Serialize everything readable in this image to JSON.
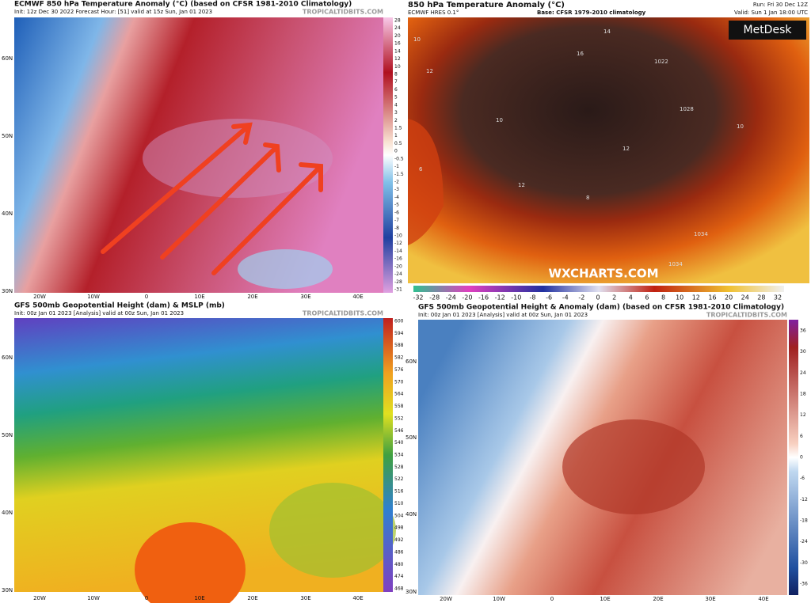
{
  "panels": [
    {
      "title": "ECMWF 850 hPa Temperature Anomaly (°C) (based on CFSR 1981-2010 Climatology)",
      "subtitle": "Init: 12z Dec 30 2022   Forecast Hour: [51]   valid at 15z Sun, Jan 01 2023",
      "credit": "TROPICALTIDBITS.COM",
      "colorbar": [
        28,
        24,
        20,
        16,
        14,
        12,
        10,
        8,
        7,
        6,
        5,
        4,
        3,
        2,
        1.5,
        1,
        0.5,
        0,
        -0.5,
        -1,
        -1.5,
        -2,
        -3,
        -4,
        -5,
        -6,
        -7,
        -8,
        -10,
        -12,
        -14,
        -16,
        -20,
        -24,
        -28,
        -31
      ],
      "lat_labels": [
        "60N",
        "50N",
        "40N",
        "30N"
      ],
      "lon_labels": [
        "20W",
        "10W",
        "0",
        "10E",
        "20E",
        "30E",
        "40E"
      ]
    },
    {
      "title": "850 hPa Temperature Anomaly (°C)",
      "subtitle": "ECMWF HRES 0.1°",
      "base": "Base: CFSR 1979-2010 climatology",
      "run": "Run: Fri 30 Dec 12Z",
      "valid": "Valid: Sun 1 Jan 18:00 UTC",
      "logo": "MetDesk",
      "watermark": "WXCHARTS.COM",
      "contour_labels": [
        "10",
        "14",
        "16",
        "12",
        "1022",
        "1028",
        "10",
        "10",
        "12",
        "12",
        "8",
        "6",
        "1034",
        "1034"
      ],
      "colorbar": [
        -32,
        -28,
        -24,
        -20,
        -16,
        -12,
        -10,
        -8,
        -6,
        -4,
        -2,
        0,
        2,
        4,
        6,
        8,
        10,
        12,
        16,
        20,
        24,
        28,
        32
      ]
    },
    {
      "title": "GFS 500mb Geopotential Height (dam) & MSLP (mb)",
      "subtitle": "Init: 00z Jan 01 2023   [Analysis]   valid at 00z Sun, Jan 01 2023",
      "credit": "TROPICALTIDBITS.COM",
      "colorbar": [
        600,
        594,
        588,
        582,
        576,
        570,
        564,
        558,
        552,
        546,
        540,
        534,
        528,
        522,
        516,
        510,
        504,
        498,
        492,
        486,
        480,
        474,
        468
      ],
      "lat_labels": [
        "60N",
        "50N",
        "40N",
        "30N"
      ],
      "lon_labels": [
        "20W",
        "10W",
        "0",
        "10E",
        "20E",
        "30E",
        "40E"
      ]
    },
    {
      "title": "GFS 500mb Geopotential Height & Anomaly (dam) (based on CFSR 1981-2010 Climatology)",
      "subtitle": "Init: 00z Jan 01 2023   [Analysis]   valid at 00z Sun, Jan 01 2023",
      "credit": "TROPICALTIDBITS.COM",
      "colorbar": [
        36,
        30,
        24,
        18,
        12,
        6,
        0,
        -6,
        -12,
        -18,
        -24,
        -30,
        -36
      ],
      "lat_labels": [
        "60N",
        "50N",
        "40N",
        "30N"
      ],
      "lon_labels": [
        "20W",
        "10W",
        "0",
        "10E",
        "20E",
        "30E",
        "40E"
      ]
    }
  ]
}
